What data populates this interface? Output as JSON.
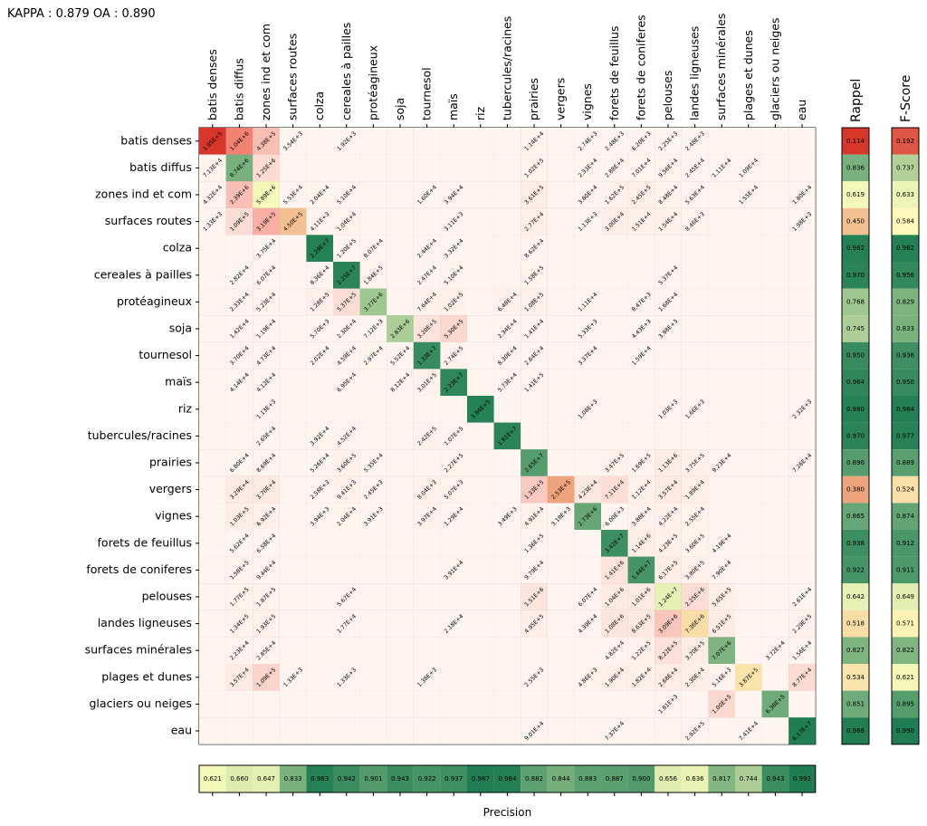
{
  "header": {
    "kappa_oa": "KAPPA : 0.879 OA : 0.890"
  },
  "labels": {
    "rappel": "Rappel",
    "fscore": "F-Score",
    "precision": "Precision"
  },
  "colors": {
    "empty_cell": "#fff5f0",
    "grid": "#a0a0a0",
    "scale_low": "#d73027",
    "scale_mid": "#ffffbf",
    "scale_high": "#1a7a50"
  },
  "chart_data": {
    "type": "heatmap",
    "title": "",
    "classes": [
      "batis denses",
      "batis diffus",
      "zones ind et com",
      "surfaces routes",
      "colza",
      "cereales à pailles",
      "protéagineux",
      "soja",
      "tournesol",
      "maïs",
      "riz",
      "tubercules/racines",
      "prairies",
      "vergers",
      "vignes",
      "forets de feuillus",
      "forets de coniferes",
      "pelouses",
      "landes ligneuses",
      "surfaces minérales",
      "plages et dunes",
      "glaciers ou neiges",
      "eau"
    ],
    "matrix": [
      [
        "1.95E+5",
        "1.04E+6",
        "4.38E+5",
        "3.54E+3",
        "",
        "1.92E+3",
        "",
        "",
        "",
        "",
        "",
        "",
        "1.14E+4",
        "",
        "2.74E+3",
        "2.48E+3",
        "6.20E+3",
        "2.25E+3",
        "2.48E+3",
        "",
        "",
        "",
        ""
      ],
      [
        "7.13E+4",
        "8.74E+6",
        "1.25E+6",
        "",
        "",
        "",
        "",
        "",
        "",
        "",
        "",
        "",
        "1.02E+5",
        "",
        "2.33E+4",
        "2.88E+4",
        "7.01E+4",
        "9.56E+4",
        "2.45E+4",
        "1.11E+4",
        "1.09E+4",
        "",
        ""
      ],
      [
        "4.32E+4",
        "2.39E+6",
        "5.89E+6",
        "5.53E+4",
        "2.04E+4",
        "5.10E+4",
        "",
        "",
        "1.60E+4",
        "3.94E+4",
        "",
        "",
        "3.61E+5",
        "",
        "3.80E+4",
        "1.62E+5",
        "2.45E+5",
        "8.48E+4",
        "5.63E+4",
        "",
        "1.55E+4",
        "",
        "1.80E+4"
      ],
      [
        "1.33E+3",
        "1.09E+5",
        "3.19E+5",
        "4.50E+5",
        "4.11E+3",
        "1.04E+4",
        "",
        "",
        "",
        "3.11E+3",
        "",
        "",
        "2.77E+4",
        "",
        "1.13E+3",
        "3.00E+4",
        "1.51E+4",
        "1.54E+4",
        "8.46E+3",
        "",
        "",
        "",
        "1.98E+3"
      ],
      [
        "",
        "",
        "3.75E+4",
        "",
        "2.29E+7",
        "1.20E+5",
        "8.07E+4",
        "",
        "2.44E+4",
        "3.32E+4",
        "",
        "",
        "8.62E+4",
        "",
        "",
        "",
        "",
        "",
        "",
        "",
        "",
        "",
        ""
      ],
      [
        "",
        "2.82E+4",
        "6.07E+4",
        "",
        "8.36E+4",
        "2.25E+7",
        "1.84E+5",
        "",
        "2.47E+4",
        "5.10E+4",
        "",
        "",
        "1.58E+5",
        "",
        "",
        "",
        "",
        "5.37E+4",
        "",
        "",
        "",
        "",
        ""
      ],
      [
        "",
        "2.33E+4",
        "5.23E+4",
        "",
        "1.28E+5",
        "5.37E+5",
        "3.77E+6",
        "",
        "7.64E+4",
        "1.02E+5",
        "",
        "6.48E+4",
        "1.08E+5",
        "",
        "1.11E+4",
        "",
        "8.47E+3",
        "1.68E+4",
        "",
        "",
        "",
        "",
        ""
      ],
      [
        "",
        "1.42E+4",
        "1.19E+4",
        "",
        "5.70E+3",
        "2.30E+4",
        "7.12E+3",
        "2.83E+6",
        "3.20E+5",
        "5.30E+5",
        "",
        "2.34E+4",
        "1.41E+4",
        "",
        "5.33E+3",
        "",
        "4.43E+3",
        "3.98E+3",
        "",
        "",
        "",
        "",
        ""
      ],
      [
        "",
        "3.70E+4",
        "4.73E+4",
        "",
        "2.02E+4",
        "4.59E+4",
        "2.97E+4",
        "5.52E+4",
        "1.33E+7",
        "2.74E+5",
        "",
        "8.30E+4",
        "2.64E+4",
        "",
        "3.37E+4",
        "",
        "1.59E+4",
        "",
        "",
        "",
        "",
        "",
        ""
      ],
      [
        "",
        "4.14E+4",
        "4.12E+4",
        "",
        "",
        "6.95E+4",
        "",
        "8.12E+4",
        "3.01E+5",
        "2.23E+7",
        "",
        "5.73E+4",
        "1.41E+5",
        "",
        "",
        "",
        "",
        "",
        "",
        "",
        "",
        "",
        ""
      ],
      [
        "",
        "",
        "1.13E+3",
        "",
        "",
        "",
        "",
        "",
        "",
        "",
        "3.94E+5",
        "",
        "",
        "",
        "1.08E+3",
        "",
        "",
        "1.03E+3",
        "1.66E+3",
        "",
        "",
        "",
        "2.32E+3"
      ],
      [
        "",
        "",
        "2.65E+4",
        "",
        "3.92E+4",
        "4.52E+4",
        "",
        "",
        "2.42E+5",
        "1.07E+5",
        "",
        "1.81E+7",
        "",
        "",
        "",
        "",
        "",
        "",
        "",
        "",
        "",
        "",
        ""
      ],
      [
        "",
        "6.80E+4",
        "8.69E+4",
        "",
        "5.26E+4",
        "3.60E+5",
        "5.35E+4",
        "",
        "",
        "2.27E+5",
        "",
        "",
        "2.65E+7",
        "",
        "",
        "3.47E+5",
        "1.69E+5",
        "1.13E+6",
        "3.75E+5",
        "9.23E+4",
        "",
        "",
        "7.26E+4"
      ],
      [
        "",
        "3.29E+4",
        "3.70E+4",
        "",
        "2.58E+3",
        "9.41E+3",
        "2.45E+3",
        "",
        "8.04E+3",
        "5.07E+3",
        "",
        "",
        "1.33E+5",
        "2.53E+5",
        "4.23E+4",
        "7.11E+4",
        "1.12E+4",
        "3.57E+4",
        "1.89E+4",
        "",
        "",
        "",
        ""
      ],
      [
        "",
        "1.03E+5",
        "6.92E+4",
        "",
        "3.94E+3",
        "2.04E+4",
        "3.91E+3",
        "",
        "3.97E+4",
        "1.29E+4",
        "",
        "3.49E+3",
        "4.91E+4",
        "3.18E+3",
        "2.73E+6",
        "6.00E+3",
        "3.88E+4",
        "4.22E+4",
        "2.55E+4",
        "",
        "",
        "",
        ""
      ],
      [
        "",
        "5.62E+4",
        "6.58E+4",
        "",
        "",
        "",
        "",
        "",
        "",
        "",
        "",
        "",
        "1.36E+5",
        "",
        "",
        "3.42E+7",
        "1.14E+6",
        "4.23E+5",
        "3.60E+5",
        "4.19E+4",
        "",
        "",
        ""
      ],
      [
        "",
        "1.58E+5",
        "9.44E+4",
        "",
        "",
        "",
        "",
        "",
        "",
        "3.91E+4",
        "",
        "",
        "9.79E+4",
        "",
        "",
        "1.41E+6",
        "1.44E+7",
        "6.17E+5",
        "3.80E+5",
        "7.90E+4",
        "",
        "",
        ""
      ],
      [
        "",
        "1.77E+5",
        "1.87E+5",
        "",
        "",
        "5.67E+4",
        "",
        "",
        "",
        "",
        "",
        "",
        "1.51E+6",
        "",
        "6.07E+4",
        "1.04E+6",
        "1.01E+6",
        "1.24E+7",
        "2.25E+6",
        "5.65E+5",
        "",
        "",
        "2.61E+4"
      ],
      [
        "",
        "1.34E+5",
        "1.93E+5",
        "",
        "",
        "1.77E+4",
        "",
        "",
        "",
        "2.18E+4",
        "",
        "",
        "4.95E+5",
        "",
        "4.39E+4",
        "1.08E+6",
        "8.63E+5",
        "3.09E+6",
        "7.36E+6",
        "6.51E+5",
        "",
        "",
        "2.29E+5"
      ],
      [
        "",
        "2.23E+4",
        "2.85E+4",
        "",
        "",
        "",
        "",
        "",
        "",
        "",
        "",
        "",
        "",
        "",
        "",
        "4.82E+4",
        "1.22E+5",
        "8.22E+5",
        "3.70E+5",
        "7.07E+6",
        "",
        "3.72E+4",
        "1.56E+4"
      ],
      [
        "",
        "3.57E+4",
        "1.09E+5",
        "1.33E+3",
        "",
        "1.33E+3",
        "",
        "",
        "1.38E+3",
        "",
        "",
        "",
        "2.55E+3",
        "",
        "4.86E+3",
        "1.90E+4",
        "1.82E+4",
        "2.68E+4",
        "2.30E+4",
        "5.16E+3",
        "3.87E+5",
        "",
        "8.77E+4"
      ],
      [
        "",
        "",
        "",
        "",
        "",
        "",
        "",
        "",
        "",
        "",
        "",
        "",
        "",
        "",
        "",
        "",
        "",
        "1.81E+3",
        "",
        "1.00E+5",
        "",
        "6.38E+5",
        ""
      ],
      [
        "",
        "",
        "",
        "",
        "",
        "",
        "",
        "",
        "",
        "",
        "",
        "",
        "9.01E+4",
        "",
        "",
        "7.37E+4",
        "",
        "",
        "2.92E+5",
        "",
        "7.41E+4",
        "",
        "6.17E+7"
      ]
    ],
    "recall": [
      0.114,
      0.836,
      0.619,
      0.45,
      0.982,
      0.97,
      0.768,
      0.745,
      0.95,
      0.964,
      0.98,
      0.97,
      0.896,
      0.38,
      0.865,
      0.938,
      0.922,
      0.642,
      0.518,
      0.827,
      0.534,
      0.851,
      0.988
    ],
    "fscore": [
      0.192,
      0.737,
      0.633,
      0.584,
      0.982,
      0.956,
      0.829,
      0.833,
      0.936,
      0.95,
      0.984,
      0.977,
      0.889,
      0.524,
      0.874,
      0.912,
      0.911,
      0.649,
      0.571,
      0.822,
      0.621,
      0.895,
      0.99
    ],
    "precision": [
      0.621,
      0.66,
      0.647,
      0.833,
      0.983,
      0.942,
      0.901,
      0.943,
      0.922,
      0.937,
      0.987,
      0.984,
      0.882,
      0.844,
      0.883,
      0.887,
      0.9,
      0.656,
      0.636,
      0.817,
      0.744,
      0.943,
      0.992
    ],
    "recall_labels": [
      "0.114",
      "0.836",
      "0.619",
      "0.450",
      "0.982",
      "0.970",
      "0.768",
      "0.745",
      "0.950",
      "0.964",
      "0.980",
      "0.970",
      "0.896",
      "0.380",
      "0.865",
      "0.938",
      "0.922",
      "0.642",
      "0.518",
      "0.827",
      "0.534",
      "0.851",
      "0.988"
    ],
    "fscore_labels": [
      "0.192",
      "0.737",
      "0.633",
      "0.584",
      "0.982",
      "0.956",
      "0.829",
      "0.833",
      "0.936",
      "0.950",
      "0.984",
      "0.977",
      "0.889",
      "0.524",
      "0.874",
      "0.912",
      "0.911",
      "0.649",
      "0.571",
      "0.822",
      "0.621",
      "0.895",
      "0.990"
    ],
    "precision_labels": [
      "0.621",
      "0.660",
      "0.647",
      "0.833",
      "0.983",
      "0.942",
      "0.901",
      "0.943",
      "0.922",
      "0.937",
      "0.987",
      "0.984",
      "0.882",
      "0.844",
      "0.883",
      "0.887",
      "0.900",
      "0.656",
      "0.636",
      "0.817",
      "0.744",
      "0.943",
      "0.992"
    ],
    "diagonal_recall_colored": true,
    "grid": true
  }
}
